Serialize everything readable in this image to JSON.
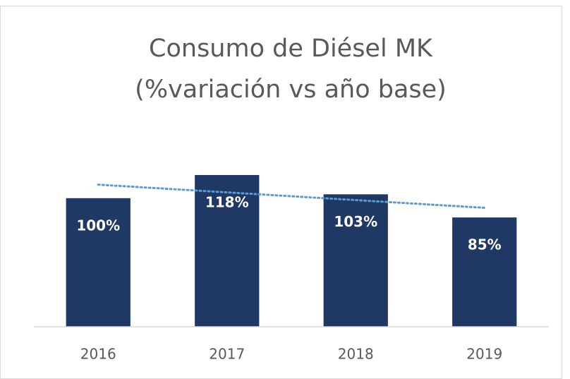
{
  "chart_data": {
    "type": "bar",
    "title": [
      "Consumo de Diésel MK",
      "(%variación vs año base)"
    ],
    "categories": [
      "2016",
      "2017",
      "2018",
      "2019"
    ],
    "values": [
      100,
      118,
      103,
      85
    ],
    "value_labels": [
      "100%",
      "118%",
      "103%",
      "85%"
    ],
    "color": "#1f3864",
    "trendline": {
      "type": "linear",
      "color": "#5b9bd5"
    },
    "ylim": [
      0,
      180
    ]
  }
}
